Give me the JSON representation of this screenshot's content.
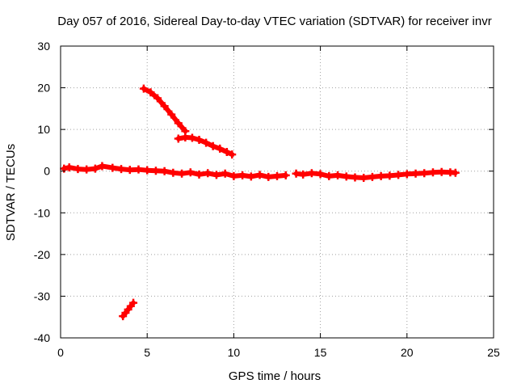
{
  "chart_data": {
    "type": "scatter",
    "title": "Day 057 of 2016, Sidereal Day-to-day VTEC variation (SDTVAR) for receiver invr",
    "xlabel": "GPS time / hours",
    "ylabel": "SDTVAR / TECUs",
    "xlim": [
      0,
      25
    ],
    "ylim": [
      -40,
      30
    ],
    "xticks": [
      0,
      5,
      10,
      15,
      20,
      25
    ],
    "yticks": [
      -40,
      -30,
      -20,
      -10,
      0,
      10,
      20,
      30
    ],
    "grid": true,
    "marker_color": "#ff0000",
    "series": [
      {
        "name": "main-band",
        "points": [
          [
            0.2,
            0.6
          ],
          [
            0.5,
            0.9
          ],
          [
            1.0,
            0.5
          ],
          [
            1.5,
            0.4
          ],
          [
            2.0,
            0.6
          ],
          [
            2.4,
            1.2
          ],
          [
            3.0,
            0.8
          ],
          [
            3.5,
            0.5
          ],
          [
            4.0,
            0.3
          ],
          [
            4.5,
            0.4
          ],
          [
            5.0,
            0.2
          ],
          [
            5.5,
            0.1
          ],
          [
            6.0,
            0.0
          ],
          [
            6.5,
            -0.4
          ],
          [
            7.0,
            -0.6
          ],
          [
            7.5,
            -0.3
          ],
          [
            8.0,
            -0.8
          ],
          [
            8.5,
            -0.5
          ],
          [
            9.0,
            -0.9
          ],
          [
            9.5,
            -0.6
          ],
          [
            10.0,
            -1.2
          ],
          [
            10.5,
            -1.0
          ],
          [
            11.0,
            -1.3
          ],
          [
            11.5,
            -0.9
          ],
          [
            12.0,
            -1.4
          ],
          [
            12.5,
            -1.2
          ],
          [
            13.0,
            -1.0
          ]
        ]
      },
      {
        "name": "late-band",
        "points": [
          [
            13.6,
            -0.6
          ],
          [
            14.0,
            -0.8
          ],
          [
            14.5,
            -0.5
          ],
          [
            15.0,
            -0.7
          ],
          [
            15.5,
            -1.2
          ],
          [
            16.0,
            -1.0
          ],
          [
            16.5,
            -1.3
          ],
          [
            17.0,
            -1.5
          ],
          [
            17.5,
            -1.6
          ],
          [
            18.0,
            -1.4
          ],
          [
            18.5,
            -1.2
          ],
          [
            19.0,
            -1.1
          ],
          [
            19.5,
            -0.9
          ],
          [
            20.0,
            -0.7
          ],
          [
            20.5,
            -0.6
          ],
          [
            21.0,
            -0.5
          ],
          [
            21.5,
            -0.3
          ],
          [
            22.0,
            -0.2
          ],
          [
            22.5,
            -0.3
          ],
          [
            22.8,
            -0.4
          ]
        ]
      },
      {
        "name": "descending-arc",
        "points": [
          [
            4.8,
            19.8
          ],
          [
            5.2,
            18.9
          ],
          [
            5.6,
            17.5
          ],
          [
            6.0,
            15.6
          ],
          [
            6.4,
            13.6
          ],
          [
            6.8,
            11.5
          ],
          [
            7.2,
            9.6
          ]
        ]
      },
      {
        "name": "tail-arc",
        "points": [
          [
            6.8,
            7.8
          ],
          [
            7.2,
            8.1
          ],
          [
            7.6,
            8.0
          ],
          [
            8.0,
            7.5
          ],
          [
            8.4,
            6.8
          ],
          [
            8.8,
            6.0
          ],
          [
            9.2,
            5.4
          ],
          [
            9.6,
            4.6
          ],
          [
            9.9,
            4.0
          ]
        ]
      },
      {
        "name": "low-segment",
        "points": [
          [
            3.6,
            -34.8
          ],
          [
            3.75,
            -34.0
          ],
          [
            3.9,
            -33.2
          ],
          [
            4.05,
            -32.4
          ],
          [
            4.2,
            -31.6
          ]
        ]
      }
    ]
  }
}
